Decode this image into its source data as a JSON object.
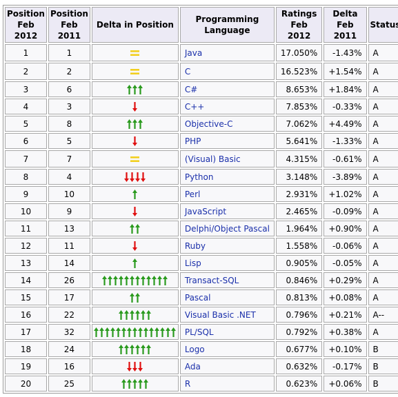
{
  "headers": {
    "pos2012": [
      "Position",
      "Feb 2012"
    ],
    "pos2011": [
      "Position",
      "Feb 2011"
    ],
    "delta": "Delta in Position",
    "lang": "Programming Language",
    "ratings": [
      "Ratings",
      "Feb 2012"
    ],
    "delta2011": [
      "Delta",
      "Feb 2011"
    ],
    "status": "Status"
  },
  "colors": {
    "up": "#2a9a1e",
    "down": "#e01010",
    "equal": "#f2cf1f",
    "link": "#1a2faa"
  },
  "rows": [
    {
      "p2012": "1",
      "p2011": "1",
      "delta": {
        "type": "equal",
        "count": 1
      },
      "lang": "Java",
      "rating": "17.050%",
      "change": "-1.43%",
      "status": "A"
    },
    {
      "p2012": "2",
      "p2011": "2",
      "delta": {
        "type": "equal",
        "count": 1
      },
      "lang": "C",
      "rating": "16.523%",
      "change": "+1.54%",
      "status": "A"
    },
    {
      "p2012": "3",
      "p2011": "6",
      "delta": {
        "type": "up",
        "count": 3
      },
      "lang": "C#",
      "rating": "8.653%",
      "change": "+1.84%",
      "status": "A"
    },
    {
      "p2012": "4",
      "p2011": "3",
      "delta": {
        "type": "down",
        "count": 1
      },
      "lang": "C++",
      "rating": "7.853%",
      "change": "-0.33%",
      "status": "A"
    },
    {
      "p2012": "5",
      "p2011": "8",
      "delta": {
        "type": "up",
        "count": 3
      },
      "lang": "Objective-C",
      "rating": "7.062%",
      "change": "+4.49%",
      "status": "A"
    },
    {
      "p2012": "6",
      "p2011": "5",
      "delta": {
        "type": "down",
        "count": 1
      },
      "lang": "PHP",
      "rating": "5.641%",
      "change": "-1.33%",
      "status": "A"
    },
    {
      "p2012": "7",
      "p2011": "7",
      "delta": {
        "type": "equal",
        "count": 1
      },
      "lang": "(Visual) Basic",
      "rating": "4.315%",
      "change": "-0.61%",
      "status": "A"
    },
    {
      "p2012": "8",
      "p2011": "4",
      "delta": {
        "type": "down",
        "count": 4
      },
      "lang": "Python",
      "rating": "3.148%",
      "change": "-3.89%",
      "status": "A"
    },
    {
      "p2012": "9",
      "p2011": "10",
      "delta": {
        "type": "up",
        "count": 1
      },
      "lang": "Perl",
      "rating": "2.931%",
      "change": "+1.02%",
      "status": "A"
    },
    {
      "p2012": "10",
      "p2011": "9",
      "delta": {
        "type": "down",
        "count": 1
      },
      "lang": "JavaScript",
      "rating": "2.465%",
      "change": "-0.09%",
      "status": "A"
    },
    {
      "p2012": "11",
      "p2011": "13",
      "delta": {
        "type": "up",
        "count": 2
      },
      "lang": "Delphi/Object Pascal",
      "rating": "1.964%",
      "change": "+0.90%",
      "status": "A"
    },
    {
      "p2012": "12",
      "p2011": "11",
      "delta": {
        "type": "down",
        "count": 1
      },
      "lang": "Ruby",
      "rating": "1.558%",
      "change": "-0.06%",
      "status": "A"
    },
    {
      "p2012": "13",
      "p2011": "14",
      "delta": {
        "type": "up",
        "count": 1
      },
      "lang": "Lisp",
      "rating": "0.905%",
      "change": "-0.05%",
      "status": "A"
    },
    {
      "p2012": "14",
      "p2011": "26",
      "delta": {
        "type": "up",
        "count": 12
      },
      "lang": "Transact-SQL",
      "rating": "0.846%",
      "change": "+0.29%",
      "status": "A"
    },
    {
      "p2012": "15",
      "p2011": "17",
      "delta": {
        "type": "up",
        "count": 2
      },
      "lang": "Pascal",
      "rating": "0.813%",
      "change": "+0.08%",
      "status": "A"
    },
    {
      "p2012": "16",
      "p2011": "22",
      "delta": {
        "type": "up",
        "count": 6
      },
      "lang": "Visual Basic .NET",
      "rating": "0.796%",
      "change": "+0.21%",
      "status": "A--"
    },
    {
      "p2012": "17",
      "p2011": "32",
      "delta": {
        "type": "up",
        "count": 15
      },
      "lang": "PL/SQL",
      "rating": "0.792%",
      "change": "+0.38%",
      "status": "A"
    },
    {
      "p2012": "18",
      "p2011": "24",
      "delta": {
        "type": "up",
        "count": 6
      },
      "lang": "Logo",
      "rating": "0.677%",
      "change": "+0.10%",
      "status": "B"
    },
    {
      "p2012": "19",
      "p2011": "16",
      "delta": {
        "type": "down",
        "count": 3
      },
      "lang": "Ada",
      "rating": "0.632%",
      "change": "-0.17%",
      "status": "B"
    },
    {
      "p2012": "20",
      "p2011": "25",
      "delta": {
        "type": "up",
        "count": 5
      },
      "lang": "R",
      "rating": "0.623%",
      "change": "+0.06%",
      "status": "B"
    }
  ]
}
